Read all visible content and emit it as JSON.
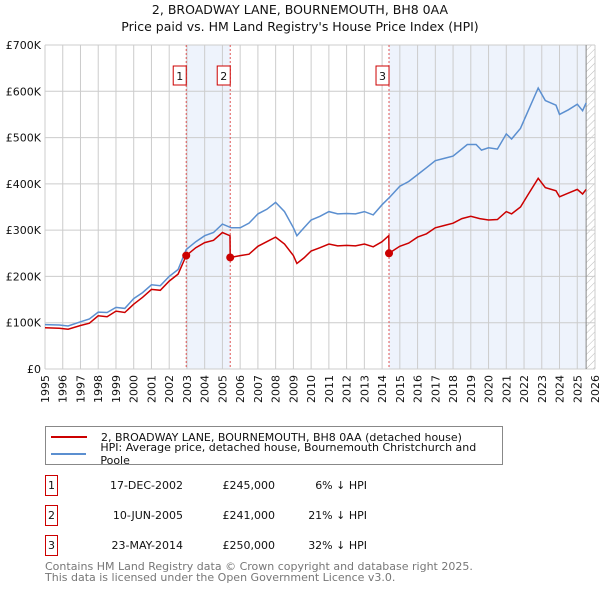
{
  "chart_data": {
    "type": "line",
    "title": "2, BROADWAY LANE, BOURNEMOUTH, BH8 0AA",
    "subtitle": "Price paid vs. HM Land Registry's House Price Index (HPI)",
    "xlabel": "",
    "ylabel": "",
    "xlim": [
      1995,
      2026
    ],
    "ylim": [
      0,
      700000
    ],
    "yticks": [
      0,
      100000,
      200000,
      300000,
      400000,
      500000,
      600000,
      700000
    ],
    "ytick_labels": [
      "£0",
      "£100K",
      "£200K",
      "£300K",
      "£400K",
      "£500K",
      "£600K",
      "£700K"
    ],
    "xticks": [
      "1995",
      "1996",
      "1997",
      "1998",
      "1999",
      "2000",
      "2001",
      "2002",
      "2003",
      "2004",
      "2005",
      "2006",
      "2007",
      "2008",
      "2009",
      "2010",
      "2011",
      "2012",
      "2013",
      "2014",
      "2015",
      "2016",
      "2017",
      "2018",
      "2019",
      "2020",
      "2021",
      "2022",
      "2023",
      "2024",
      "2025",
      "2026"
    ],
    "grid": true,
    "shaded_periods": [
      [
        2002.96,
        2005.44
      ],
      [
        2014.39,
        2025.5
      ]
    ],
    "hatched_from": 2025.5,
    "series": [
      {
        "name": "2, BROADWAY LANE, BOURNEMOUTH, BH8 0AA (detached house)",
        "color": "#cc0000",
        "x": [
          1995,
          1995.8,
          1996.3,
          1997,
          1997.5,
          1998,
          1998.5,
          1999,
          1999.5,
          2000,
          2000.5,
          2001,
          2001.5,
          2002,
          2002.5,
          2002.96,
          2003.5,
          2004,
          2004.5,
          2005,
          2005.43,
          2005.44,
          2006,
          2006.5,
          2007,
          2007.5,
          2008,
          2008.5,
          2009,
          2009.2,
          2009.6,
          2010,
          2010.5,
          2011,
          2011.5,
          2012,
          2012.5,
          2013,
          2013.5,
          2014,
          2014.38,
          2014.39,
          2015,
          2015.5,
          2016,
          2016.5,
          2017,
          2017.5,
          2018,
          2018.5,
          2019,
          2019.5,
          2020,
          2020.5,
          2021,
          2021.3,
          2021.8,
          2022.2,
          2022.8,
          2023.2,
          2023.8,
          2024,
          2024.5,
          2025,
          2025.3,
          2025.5
        ],
        "y": [
          89000,
          88000,
          86000,
          94000,
          99000,
          115000,
          113000,
          125000,
          122000,
          140000,
          155000,
          172000,
          170000,
          190000,
          205000,
          245000,
          262000,
          273000,
          278000,
          295000,
          288000,
          241000,
          245000,
          248000,
          265000,
          275000,
          285000,
          270000,
          245000,
          228000,
          240000,
          255000,
          262000,
          270000,
          266000,
          267000,
          266000,
          270000,
          264000,
          275000,
          288000,
          250000,
          265000,
          272000,
          285000,
          292000,
          305000,
          310000,
          315000,
          325000,
          330000,
          325000,
          322000,
          323000,
          340000,
          335000,
          350000,
          375000,
          412000,
          392000,
          385000,
          372000,
          380000,
          388000,
          378000,
          388000
        ]
      },
      {
        "name": "HPI: Average price, detached house, Bournemouth Christchurch and Poole",
        "color": "#5b8fd0",
        "x": [
          1995,
          1995.8,
          1996.3,
          1997,
          1997.5,
          1998,
          1998.5,
          1999,
          1999.5,
          2000,
          2000.5,
          2001,
          2001.5,
          2002,
          2002.5,
          2002.96,
          2003.5,
          2004,
          2004.5,
          2005,
          2005.5,
          2006,
          2006.5,
          2007,
          2007.5,
          2008,
          2008.5,
          2009,
          2009.2,
          2009.6,
          2010,
          2010.5,
          2011,
          2011.5,
          2012,
          2012.5,
          2013,
          2013.5,
          2014,
          2014.4,
          2015,
          2015.5,
          2016,
          2016.5,
          2017,
          2017.5,
          2018,
          2018.8,
          2019.3,
          2019.6,
          2020,
          2020.5,
          2021,
          2021.3,
          2021.8,
          2022.2,
          2022.8,
          2023.2,
          2023.8,
          2024,
          2024.5,
          2025,
          2025.3,
          2025.5
        ],
        "y": [
          96000,
          95000,
          93000,
          102000,
          108000,
          123000,
          122000,
          133000,
          131000,
          152000,
          165000,
          182000,
          180000,
          200000,
          215000,
          258000,
          275000,
          288000,
          295000,
          313000,
          305000,
          305000,
          315000,
          335000,
          345000,
          360000,
          340000,
          305000,
          288000,
          305000,
          322000,
          330000,
          340000,
          335000,
          336000,
          335000,
          340000,
          333000,
          355000,
          370000,
          395000,
          405000,
          420000,
          435000,
          450000,
          455000,
          460000,
          485000,
          485000,
          473000,
          478000,
          475000,
          508000,
          497000,
          520000,
          555000,
          607000,
          580000,
          570000,
          550000,
          560000,
          572000,
          558000,
          575000
        ]
      }
    ],
    "sales": [
      {
        "label": "1",
        "x": 2002.96,
        "y": 245000
      },
      {
        "label": "2",
        "x": 2005.44,
        "y": 241000
      },
      {
        "label": "3",
        "x": 2014.39,
        "y": 250000
      }
    ]
  },
  "legend": {
    "red": "2, BROADWAY LANE, BOURNEMOUTH, BH8 0AA (detached house)",
    "blue": "HPI: Average price, detached house, Bournemouth Christchurch and Poole"
  },
  "table": [
    {
      "num": "1",
      "date": "17-DEC-2002",
      "price": "£245,000",
      "hpi": "6% ↓ HPI"
    },
    {
      "num": "2",
      "date": "10-JUN-2005",
      "price": "£241,000",
      "hpi": "21% ↓ HPI"
    },
    {
      "num": "3",
      "date": "23-MAY-2014",
      "price": "£250,000",
      "hpi": "32% ↓ HPI"
    }
  ],
  "footer": {
    "line1": "Contains HM Land Registry data © Crown copyright and database right 2025.",
    "line2": "This data is licensed under the Open Government Licence v3.0."
  }
}
